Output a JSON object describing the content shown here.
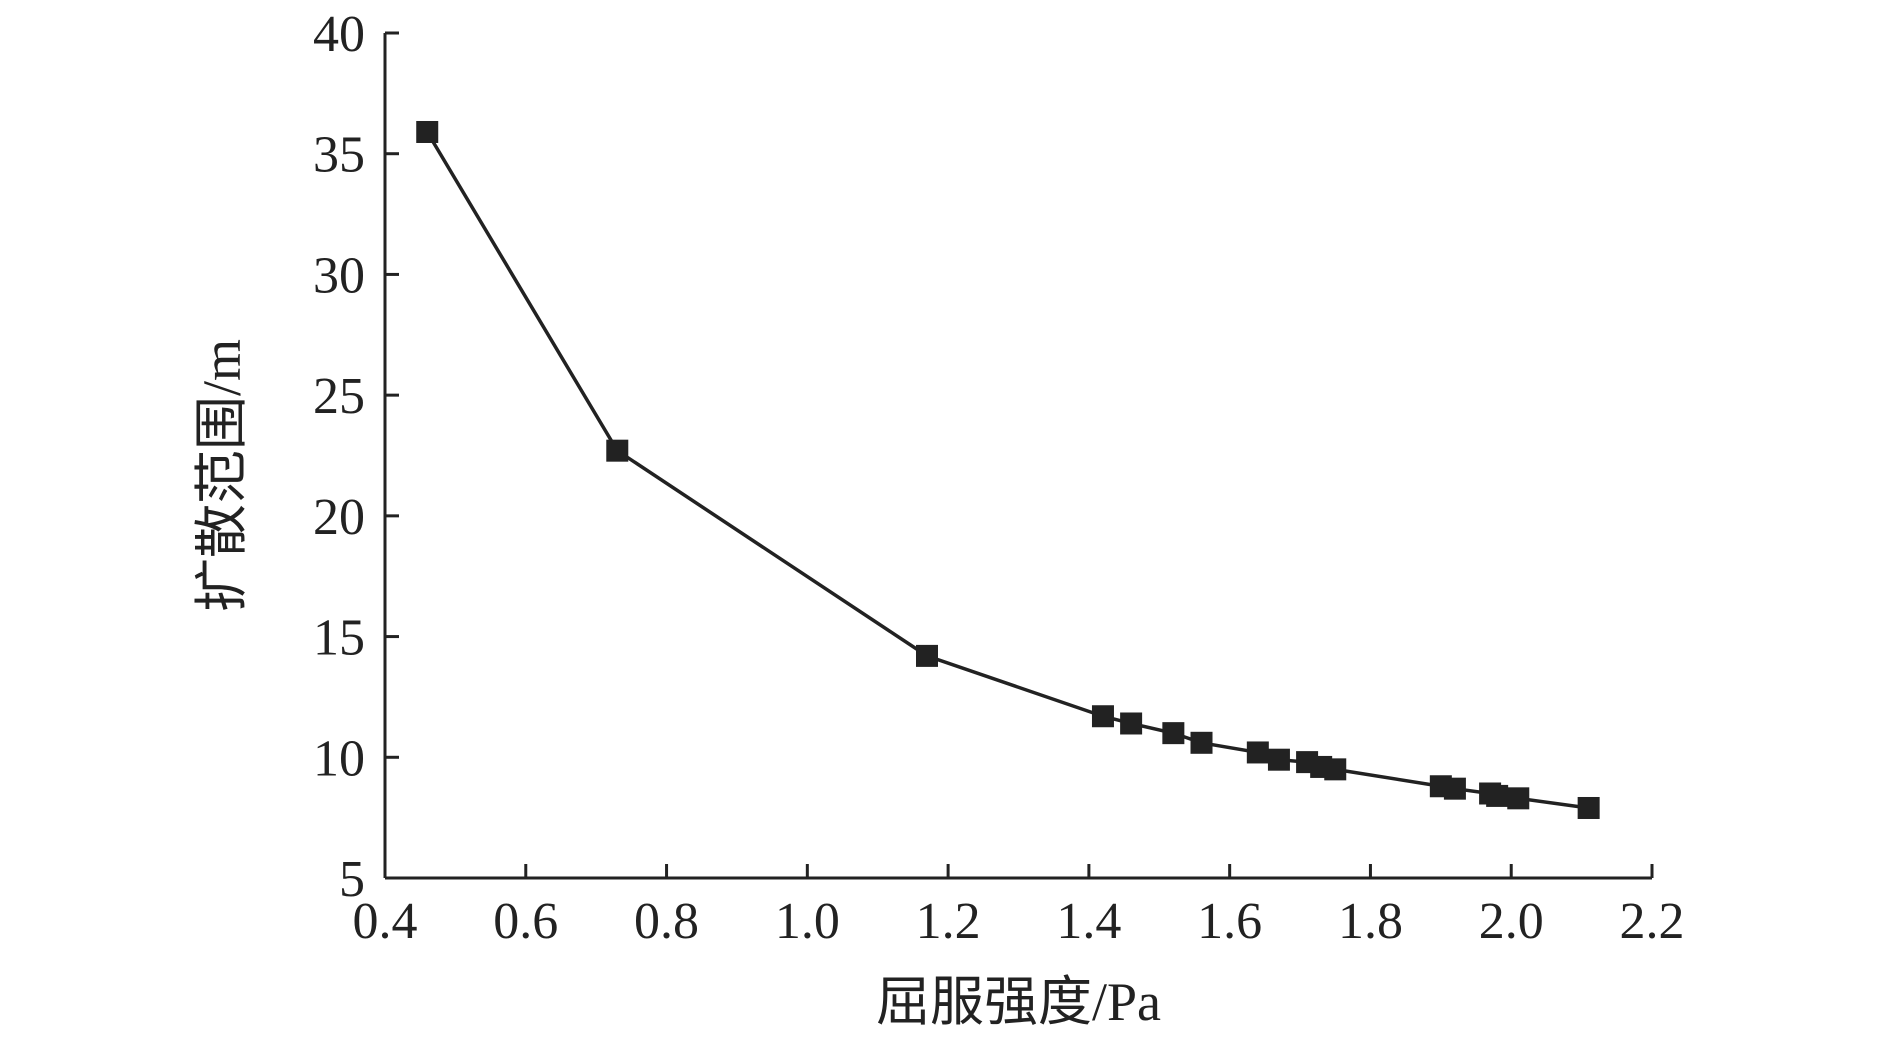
{
  "chart_data": {
    "type": "line",
    "title": "",
    "xlabel": "屈服强度/Pa",
    "ylabel": "扩散范围/m",
    "xlim": [
      0.4,
      2.2
    ],
    "ylim": [
      5,
      40
    ],
    "xticks": [
      "0.4",
      "0.6",
      "0.8",
      "1.0",
      "1.2",
      "1.4",
      "1.6",
      "1.8",
      "2.0",
      "2.2"
    ],
    "yticks": [
      "5",
      "10",
      "15",
      "20",
      "25",
      "30",
      "35",
      "40"
    ],
    "grid": false,
    "marker": "square",
    "color": "#222222",
    "series": [
      {
        "x": [
          0.46,
          0.73,
          1.17,
          1.42,
          1.46,
          1.52,
          1.56,
          1.64,
          1.67,
          1.71,
          1.73,
          1.75,
          1.9,
          1.92,
          1.97,
          1.98,
          2.01,
          2.11
        ],
        "y": [
          35.9,
          22.7,
          14.2,
          11.7,
          11.4,
          11.0,
          10.6,
          10.2,
          9.9,
          9.8,
          9.6,
          9.5,
          8.8,
          8.7,
          8.5,
          8.4,
          8.3,
          7.9
        ]
      }
    ]
  }
}
